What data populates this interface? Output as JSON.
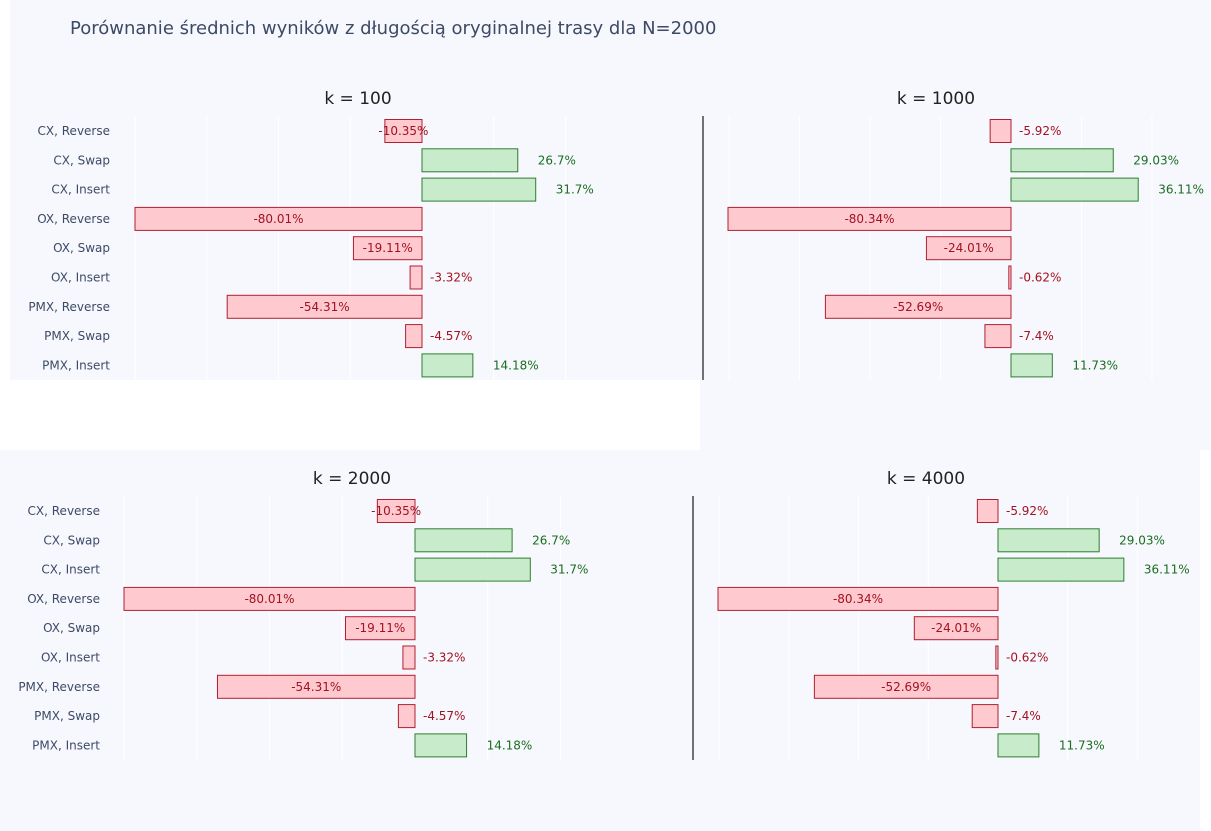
{
  "title": "Porównanie średnich wyników z długością oryginalnej trasy dla N=2000",
  "colors": {
    "neg_fill": "#ffc9d0",
    "neg_stroke": "#b0202f",
    "neg_text": "#a31220",
    "pos_fill": "#c8eccb",
    "pos_stroke": "#2e7d32",
    "pos_text": "#1b6e1f"
  },
  "chart_data": [
    {
      "type": "bar",
      "orientation": "horizontal",
      "title": "k = 100",
      "categories": [
        "CX, Reverse",
        "CX, Swap",
        "CX, Insert",
        "OX, Reverse",
        "OX, Swap",
        "OX, Insert",
        "PMX, Reverse",
        "PMX, Swap",
        "PMX, Insert"
      ],
      "values": [
        -10.35,
        26.7,
        31.7,
        -80.01,
        -19.11,
        -3.32,
        -54.31,
        -4.57,
        14.18
      ],
      "labels": [
        "-10.35%",
        "26.7%",
        "31.7%",
        "-80.01%",
        "-19.11%",
        "-3.32%",
        "-54.31%",
        "-4.57%",
        "14.18%"
      ]
    },
    {
      "type": "bar",
      "orientation": "horizontal",
      "title": "k = 1000",
      "categories": [
        "CX, Reverse",
        "CX, Swap",
        "CX, Insert",
        "OX, Reverse",
        "OX, Swap",
        "OX, Insert",
        "PMX, Reverse",
        "PMX, Swap",
        "PMX, Insert"
      ],
      "values": [
        -5.92,
        29.03,
        36.11,
        -80.34,
        -24.01,
        -0.62,
        -52.69,
        -7.4,
        11.73
      ],
      "labels": [
        "-5.92%",
        "29.03%",
        "36.11%",
        "-80.34%",
        "-24.01%",
        "-0.62%",
        "-52.69%",
        "-7.4%",
        "11.73%"
      ]
    },
    {
      "type": "bar",
      "orientation": "horizontal",
      "title": "k = 2000",
      "categories": [
        "CX, Reverse",
        "CX, Swap",
        "CX, Insert",
        "OX, Reverse",
        "OX, Swap",
        "OX, Insert",
        "PMX, Reverse",
        "PMX, Swap",
        "PMX, Insert"
      ],
      "values": [
        -10.35,
        26.7,
        31.7,
        -80.01,
        -19.11,
        -3.32,
        -54.31,
        -4.57,
        14.18
      ],
      "labels": [
        "-10.35%",
        "26.7%",
        "31.7%",
        "-80.01%",
        "-19.11%",
        "-3.32%",
        "-54.31%",
        "-4.57%",
        "14.18%"
      ]
    },
    {
      "type": "bar",
      "orientation": "horizontal",
      "title": "k = 4000",
      "categories": [
        "CX, Reverse",
        "CX, Swap",
        "CX, Insert",
        "OX, Reverse",
        "OX, Swap",
        "OX, Insert",
        "PMX, Reverse",
        "PMX, Swap",
        "PMX, Insert"
      ],
      "values": [
        -5.92,
        29.03,
        36.11,
        -80.34,
        -24.01,
        -0.62,
        -52.69,
        -7.4,
        11.73
      ],
      "labels": [
        "-5.92%",
        "29.03%",
        "36.11%",
        "-80.34%",
        "-24.01%",
        "-0.62%",
        "-52.69%",
        "-7.4%",
        "11.73%"
      ]
    }
  ]
}
